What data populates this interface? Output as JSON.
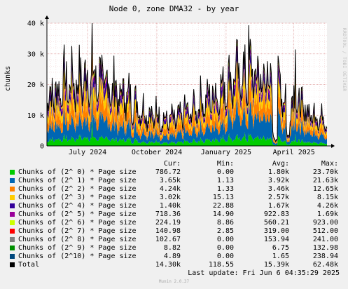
{
  "chart_data": {
    "type": "area",
    "title": "Node 0, zone DMA32 - by year",
    "ylabel": "chunks",
    "ylim": [
      0,
      40000
    ],
    "yticks": [
      {
        "value": 0,
        "label": "0"
      },
      {
        "value": 10000,
        "label": "10 k"
      },
      {
        "value": 20000,
        "label": "20 k"
      },
      {
        "value": 30000,
        "label": "30 k"
      },
      {
        "value": 40000,
        "label": "40 k"
      }
    ],
    "xticks": [
      "July 2024",
      "October 2024",
      "January 2025",
      "April 2025"
    ],
    "xrange_days": [
      0,
      372
    ],
    "xtick_days": [
      54,
      146,
      238,
      328
    ],
    "grid": true,
    "legend": "bottom",
    "stacked": true,
    "total_line_color": "#000000",
    "series": [
      {
        "name": "Chunks of (2^ 0) * Page size",
        "color": "#00cc00",
        "cur": "786.72",
        "min": "0.00",
        "avg": "1.80k",
        "max": "23.70k",
        "mean": 1800
      },
      {
        "name": "Chunks of (2^ 1) * Page size",
        "color": "#0066b3",
        "cur": "3.65k",
        "min": "1.13",
        "avg": "3.92k",
        "max": "21.63k",
        "mean": 3920
      },
      {
        "name": "Chunks of (2^ 2) * Page size",
        "color": "#ff8000",
        "cur": "4.24k",
        "min": "1.33",
        "avg": "3.46k",
        "max": "12.65k",
        "mean": 3460
      },
      {
        "name": "Chunks of (2^ 3) * Page size",
        "color": "#ffcc00",
        "cur": "3.02k",
        "min": "15.13",
        "avg": "2.57k",
        "max": "8.15k",
        "mean": 2570
      },
      {
        "name": "Chunks of (2^ 4) * Page size",
        "color": "#330099",
        "cur": "1.40k",
        "min": "22.88",
        "avg": "1.67k",
        "max": "4.26k",
        "mean": 1670
      },
      {
        "name": "Chunks of (2^ 5) * Page size",
        "color": "#990099",
        "cur": "718.36",
        "min": "14.90",
        "avg": "922.83",
        "max": "1.69k",
        "mean": 923
      },
      {
        "name": "Chunks of (2^ 6) * Page size",
        "color": "#ccff00",
        "cur": "224.19",
        "min": "8.86",
        "avg": "560.21",
        "max": "923.00",
        "mean": 560
      },
      {
        "name": "Chunks of (2^ 7) * Page size",
        "color": "#ff0000",
        "cur": "140.98",
        "min": "2.85",
        "avg": "319.00",
        "max": "512.00",
        "mean": 319
      },
      {
        "name": "Chunks of (2^ 8) * Page size",
        "color": "#808080",
        "cur": "102.67",
        "min": "0.00",
        "avg": "153.94",
        "max": "241.00",
        "mean": 154
      },
      {
        "name": "Chunks of (2^ 9) * Page size",
        "color": "#008f00",
        "cur": "8.82",
        "min": "0.00",
        "avg": "6.75",
        "max": "132.98",
        "mean": 6.75
      },
      {
        "name": "Chunks of (2^10) * Page size",
        "color": "#00487d",
        "cur": "4.89",
        "min": "0.00",
        "avg": "1.65",
        "max": "238.94",
        "mean": 1.65
      }
    ],
    "total": {
      "name": "Total",
      "color": "#000000",
      "cur": "14.30k",
      "min": "118.55",
      "avg": "15.39k",
      "max": "62.48k"
    }
  },
  "legend_headers": {
    "cur": "Cur:",
    "min": "Min:",
    "avg": "Avg:",
    "max": "Max:"
  },
  "footer": {
    "last_update": "Last update: Fri Jun  6 04:35:29 2025",
    "generator": "Munin 2.0.37",
    "side_text": "RRDTOOL / TOBI OETIKER"
  }
}
